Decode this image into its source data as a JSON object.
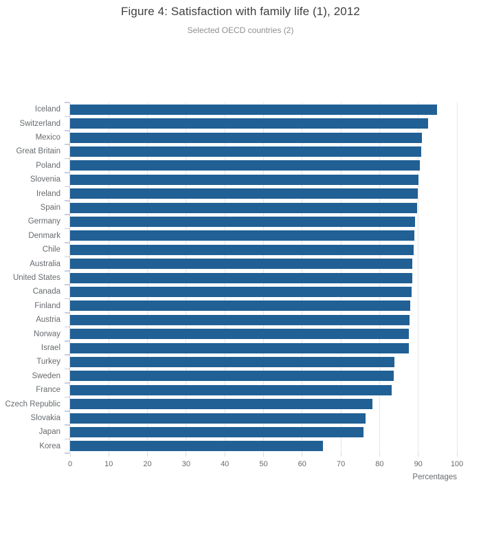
{
  "figure": {
    "title": "Figure 4: Satisfaction with family life (1), 2012",
    "subtitle": "Selected OECD countries (2)"
  },
  "chart_data": {
    "type": "bar",
    "orientation": "horizontal",
    "title": "Figure 4: Satisfaction with family life (1), 2012",
    "subtitle": "Selected OECD countries (2)",
    "xlabel": "Percentages",
    "ylabel": "",
    "xlim": [
      0,
      100
    ],
    "x_ticks": [
      0,
      10,
      20,
      30,
      40,
      50,
      60,
      70,
      80,
      90,
      100
    ],
    "grid": true,
    "legend": false,
    "categories": [
      "Iceland",
      "Switzerland",
      "Mexico",
      "Great Britain",
      "Poland",
      "Slovenia",
      "Ireland",
      "Spain",
      "Germany",
      "Denmark",
      "Chile",
      "Australia",
      "United States",
      "Canada",
      "Finland",
      "Austria",
      "Norway",
      "Israel",
      "Turkey",
      "Sweden",
      "France",
      "Czech Republic",
      "Slovakia",
      "Japan",
      "Korea"
    ],
    "values": [
      94.9,
      92.5,
      91.0,
      90.8,
      90.4,
      90.1,
      89.8,
      89.7,
      89.2,
      88.9,
      88.8,
      88.5,
      88.4,
      88.3,
      87.9,
      87.7,
      87.6,
      87.5,
      83.9,
      83.7,
      83.2,
      78.2,
      76.3,
      75.9,
      65.3
    ],
    "bar_color": "#206095",
    "grid_color": "#e6e6e6",
    "axis_color": "#c6cce2",
    "tick_label_color": "#666a6e"
  }
}
